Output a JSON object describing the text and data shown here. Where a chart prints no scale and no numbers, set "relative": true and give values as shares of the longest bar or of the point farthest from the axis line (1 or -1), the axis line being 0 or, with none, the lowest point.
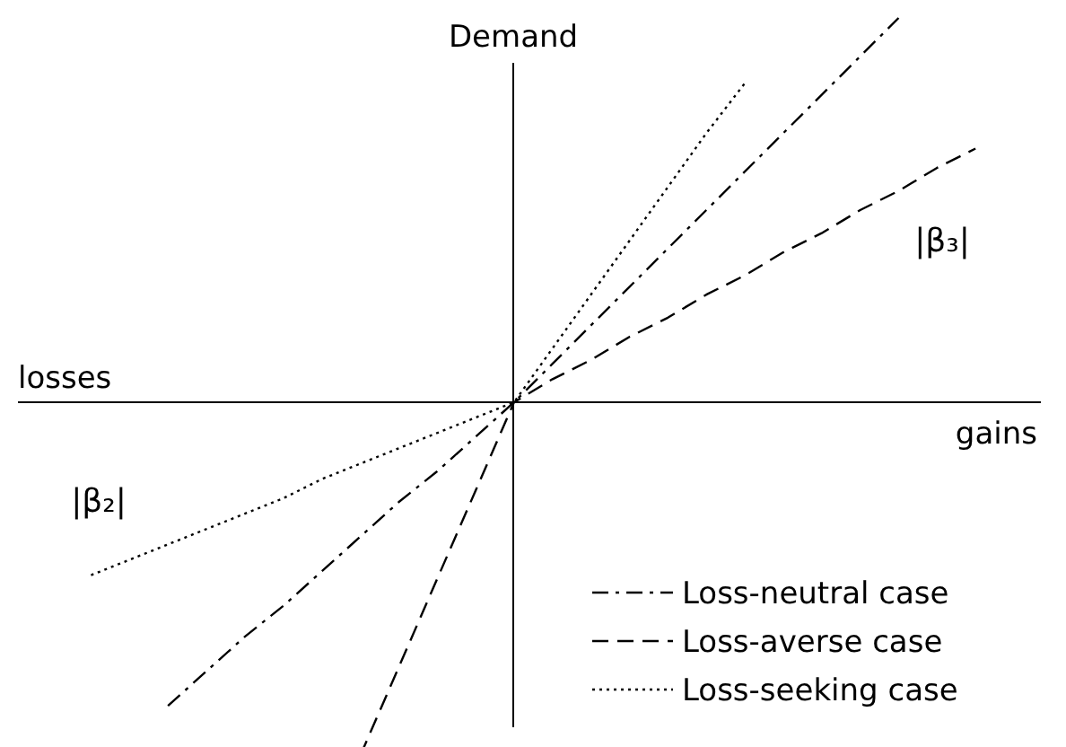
{
  "chart_data": {
    "type": "line",
    "relative": true,
    "ylabel": "Demand",
    "xlabel": "gains",
    "legend": "bottom right",
    "grid": false,
    "marker": "none",
    "categories": [
      null,
      null,
      null,
      null,
      null,
      null,
      null,
      null,
      null,
      null,
      null,
      null,
      null,
      null,
      null,
      null,
      null,
      null,
      null,
      null,
      null,
      null,
      null,
      null,
      null,
      null
    ],
    "annotations": [
      "losses",
      "|β₃|",
      "|β₂|"
    ],
    "series": [
      {
        "name": "Loss-neutral case",
        "color": "#000000",
        "line_style": "dashdot",
        "values": [
          null,
          null,
          null,
          -0.79,
          -0.7,
          -0.61,
          -0.53,
          -0.44,
          -0.35,
          -0.26,
          -0.18,
          -0.09,
          0,
          0.1,
          0.2,
          0.3,
          0.4,
          0.5,
          0.6,
          0.7,
          0.8,
          0.9,
          1.0,
          null,
          null,
          null
        ]
      },
      {
        "name": "Loss-averse case",
        "color": "#000000",
        "line_style": "dashed",
        "values": [
          null,
          null,
          null,
          null,
          null,
          null,
          null,
          null,
          -0.92,
          -0.69,
          -0.46,
          -0.23,
          0,
          0.06,
          0.11,
          0.17,
          0.22,
          0.28,
          0.33,
          0.39,
          0.44,
          0.5,
          0.55,
          0.61,
          0.66,
          null
        ]
      },
      {
        "name": "Loss-seeking case",
        "color": "#000000",
        "line_style": "dotted",
        "values": [
          null,
          -0.45,
          -0.41,
          -0.37,
          -0.33,
          -0.29,
          -0.25,
          -0.2,
          -0.16,
          -0.12,
          -0.08,
          -0.04,
          0,
          0.14,
          0.28,
          0.42,
          0.56,
          0.7,
          0.83,
          null,
          null,
          null,
          null,
          null,
          null,
          null
        ]
      }
    ]
  }
}
